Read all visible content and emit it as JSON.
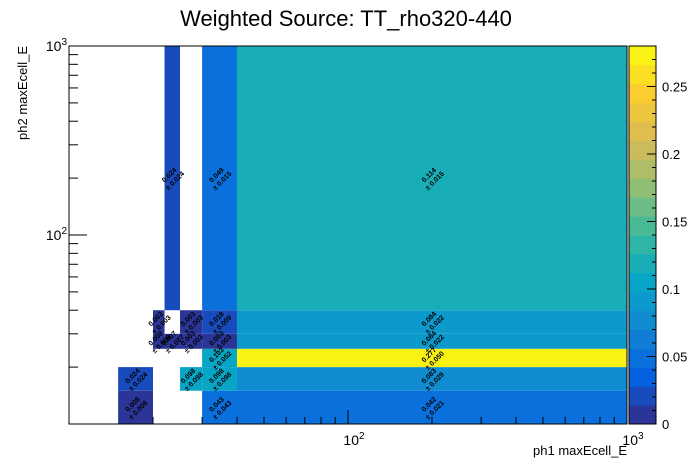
{
  "chart_data": {
    "type": "heatmap",
    "title": "Weighted Source: TT_rho320-440",
    "xlabel": "ph1 maxEcell_E",
    "ylabel": "ph2 maxEcell_E",
    "x_scale": "log",
    "y_scale": "log",
    "xlim": [
      10,
      1000
    ],
    "ylim": [
      10,
      1000
    ],
    "x_tick_labels": [
      "10^2",
      "10^3"
    ],
    "y_tick_labels": [
      "10^2",
      "10^3"
    ],
    "x_edges": [
      10,
      15,
      20,
      22,
      25,
      30,
      40,
      1000
    ],
    "y_edges": [
      10,
      15,
      20,
      25,
      30,
      40,
      1000
    ],
    "zlim": [
      0,
      0.28
    ],
    "z_ticks": [
      0,
      0.05,
      0.1,
      0.15,
      0.2,
      0.25
    ],
    "colorbar": "right",
    "cells": [
      {
        "xi": 1,
        "yi": 0,
        "value": 0.008,
        "error": 0.008
      },
      {
        "xi": 1,
        "yi": 1,
        "value": 0.024,
        "error": 0.024
      },
      {
        "xi": 2,
        "yi": 3,
        "value": 0.008,
        "error": 0.008
      },
      {
        "xi": 2,
        "yi": 4,
        "value": 0.003,
        "error": 0.003
      },
      {
        "xi": 3,
        "yi": 3,
        "value": 0.007,
        "error": 0.007
      },
      {
        "xi": 3,
        "yi": 5,
        "value": 0.024,
        "error": 0.024
      },
      {
        "xi": 4,
        "yi": 3,
        "value": 0.003,
        "error": 0.003
      },
      {
        "xi": 4,
        "yi": 4,
        "value": 0.003,
        "error": 0.003
      },
      {
        "xi": 4,
        "yi": 1,
        "value": 0.098,
        "error": 0.098
      },
      {
        "xi": 5,
        "yi": 0,
        "value": 0.043,
        "error": 0.043
      },
      {
        "xi": 5,
        "yi": 1,
        "value": 0.098,
        "error": 0.098
      },
      {
        "xi": 5,
        "yi": 2,
        "value": 0.103,
        "error": 0.052
      },
      {
        "xi": 5,
        "yi": 3,
        "value": 0.003,
        "error": 0.003
      },
      {
        "xi": 5,
        "yi": 4,
        "value": 0.018,
        "error": 0.009
      },
      {
        "xi": 5,
        "yi": 5,
        "value": 0.049,
        "error": 0.015
      },
      {
        "xi": 6,
        "yi": 0,
        "value": 0.042,
        "error": 0.021
      },
      {
        "xi": 6,
        "yi": 1,
        "value": 0.083,
        "error": 0.029
      },
      {
        "xi": 6,
        "yi": 2,
        "value": 0.277,
        "error": 0.05
      },
      {
        "xi": 6,
        "yi": 3,
        "value": 0.084,
        "error": 0.022
      },
      {
        "xi": 6,
        "yi": 4,
        "value": 0.084,
        "error": 0.022
      },
      {
        "xi": 6,
        "yi": 5,
        "value": 0.114,
        "error": 0.015
      }
    ]
  }
}
